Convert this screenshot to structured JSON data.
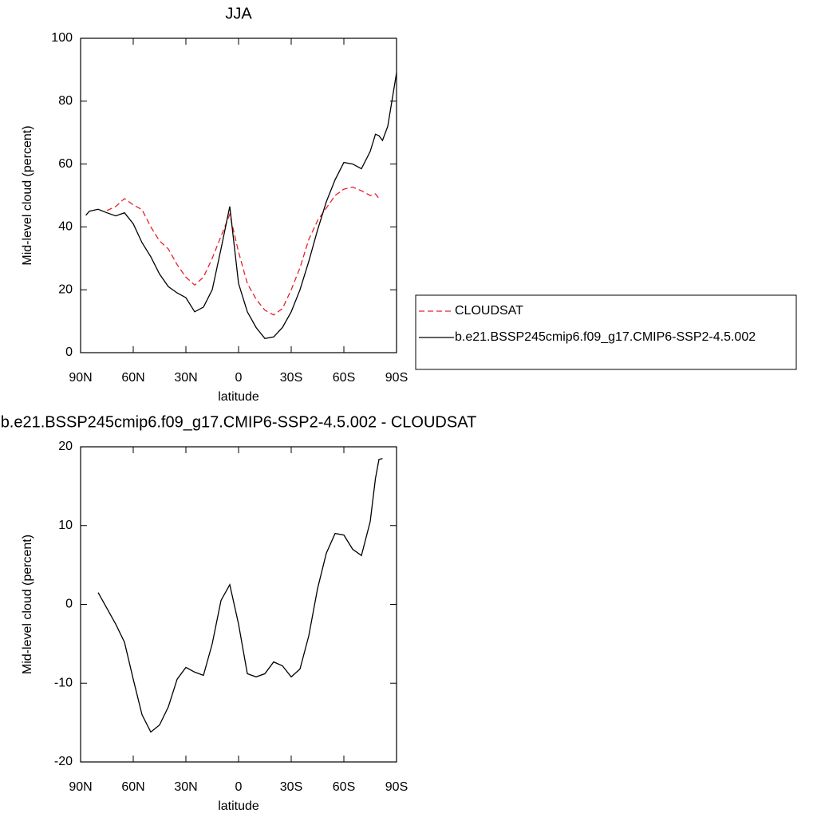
{
  "chart_data": [
    {
      "type": "line",
      "title": "JJA",
      "xlabel": "latitude",
      "ylabel": "Mid-level cloud (percent)",
      "x": [
        87,
        85,
        80,
        75,
        70,
        65,
        60,
        55,
        50,
        45,
        40,
        35,
        30,
        25,
        20,
        15,
        10,
        5,
        0,
        -5,
        -10,
        -15,
        -20,
        -25,
        -30,
        -35,
        -40,
        -45,
        -50,
        -55,
        -60,
        -65,
        -70,
        -75,
        -78,
        -80,
        -82,
        -85,
        -90
      ],
      "series": [
        {
          "name": "CLOUDSAT",
          "color": "#e8202a",
          "style": "dashed",
          "values": [
            null,
            null,
            null,
            45.2,
            46.5,
            49,
            47,
            45.5,
            40,
            35.5,
            33,
            28,
            24,
            21.5,
            24,
            30,
            37,
            44,
            32,
            22,
            17,
            13.5,
            12,
            14,
            20,
            27,
            36,
            42,
            46,
            50,
            52,
            52.7,
            51.5,
            50,
            50.5,
            49,
            null,
            null,
            null
          ]
        },
        {
          "name": "b.e21.BSSP245cmip6.f09_g17.CMIP6-SSP2-4.5.002",
          "color": "#000000",
          "style": "solid",
          "values": [
            43.7,
            45,
            45.6,
            44.5,
            43.5,
            44.5,
            41,
            35,
            30.5,
            25,
            21,
            19,
            17.5,
            13,
            14.5,
            20,
            33,
            46.5,
            22,
            13,
            8,
            4.5,
            5,
            8,
            13,
            20,
            29,
            39,
            48,
            55,
            60.5,
            60,
            58.5,
            64,
            69.5,
            69,
            67.5,
            72,
            89
          ]
        }
      ],
      "xlim": [
        90,
        -90
      ],
      "ylim": [
        0,
        100
      ],
      "xticks": [
        {
          "value": 90,
          "label": "90N"
        },
        {
          "value": 60,
          "label": "60N"
        },
        {
          "value": 30,
          "label": "30N"
        },
        0,
        {
          "value": -30,
          "label": "30S"
        },
        {
          "value": -60,
          "label": "60S"
        },
        {
          "value": -90,
          "label": "90S"
        }
      ],
      "yticks": [
        0,
        20,
        40,
        60,
        80,
        100
      ],
      "legend": "right"
    },
    {
      "type": "line",
      "title": "b.e21.BSSP245cmip6.f09_g17.CMIP6-SSP2-4.5.002 - CLOUDSAT",
      "xlabel": "latitude",
      "ylabel": "Mid-level cloud (percent)",
      "x": [
        80,
        75,
        70,
        65,
        60,
        55,
        50,
        45,
        40,
        35,
        30,
        25,
        20,
        15,
        10,
        5,
        0,
        -5,
        -10,
        -15,
        -20,
        -25,
        -30,
        -35,
        -40,
        -45,
        -50,
        -55,
        -60,
        -65,
        -70,
        -75,
        -78,
        -80,
        -82
      ],
      "series": [
        {
          "color": "#000000",
          "style": "solid",
          "values": [
            1.5,
            -0.5,
            -2.5,
            -4.8,
            -9.5,
            -14,
            -16.2,
            -15.3,
            -13,
            -9.5,
            -8,
            -8.6,
            -9,
            -5,
            0.5,
            2.5,
            -2.5,
            -8.8,
            -9.2,
            -8.8,
            -7.3,
            -7.8,
            -9.2,
            -8.2,
            -4,
            2,
            6.5,
            9,
            8.8,
            7,
            6.2,
            10.5,
            16,
            18.4,
            18.5
          ]
        }
      ],
      "xlim": [
        90,
        -90
      ],
      "ylim": [
        -20,
        20
      ],
      "xticks": [
        {
          "value": 90,
          "label": "90N"
        },
        {
          "value": 60,
          "label": "60N"
        },
        {
          "value": 30,
          "label": "30N"
        },
        0,
        {
          "value": -30,
          "label": "30S"
        },
        {
          "value": -60,
          "label": "60S"
        },
        {
          "value": -90,
          "label": "90S"
        }
      ],
      "yticks": [
        -20,
        -10,
        0,
        10,
        20
      ]
    }
  ]
}
